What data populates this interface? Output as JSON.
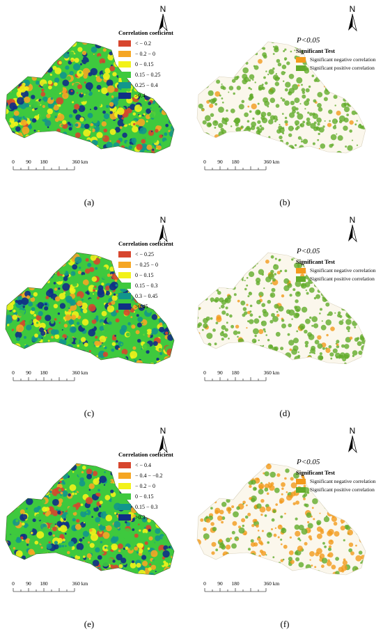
{
  "colors": {
    "corr_scale": [
      "#d7462e",
      "#f5a623",
      "#f2f21a",
      "#3ec93e",
      "#12968c",
      "#102f86"
    ],
    "sig_negative": "#f39a1c",
    "sig_positive": "#61ab2a"
  },
  "panels": [
    {
      "id": "a",
      "label": "(a)",
      "type": "correlation",
      "legend_title": "Correlation coeficient",
      "legend_items": [
        "< − 0.2",
        "− 0.2 − 0",
        "0 − 0.15",
        "0.15 − 0.25",
        "0.25 − 0.4",
        ">0.4"
      ],
      "north": "N",
      "scale_ticks": [
        "0",
        "90",
        "180",
        "360 km"
      ]
    },
    {
      "id": "b",
      "label": "(b)",
      "type": "significance",
      "p_text": "P<0.05",
      "legend_title": "Significant Test",
      "legend_items": [
        "Significant negative correlation",
        "Significant positive correlation"
      ],
      "north": "N",
      "scale_ticks": [
        "0",
        "90",
        "180",
        "360 km"
      ]
    },
    {
      "id": "c",
      "label": "(c)",
      "type": "correlation",
      "legend_title": "Correlation coeficient",
      "legend_items": [
        "< − 0.25",
        "− 0.25 − 0",
        "0 − 0.15",
        "0.15 − 0.3",
        "0.3 − 0.45",
        ">0.45"
      ],
      "north": "N",
      "scale_ticks": [
        "0",
        "90",
        "180",
        "360 km"
      ]
    },
    {
      "id": "d",
      "label": "(d)",
      "type": "significance",
      "p_text": "P<0.05",
      "legend_title": "Significant Test",
      "legend_items": [
        "Significant negative correlation",
        "Significant positive correlation"
      ],
      "north": "N",
      "scale_ticks": [
        "0",
        "90",
        "180",
        "360 km"
      ]
    },
    {
      "id": "e",
      "label": "(e)",
      "type": "correlation",
      "legend_title": "Correlation coeficient",
      "legend_items": [
        "< − 0.4",
        "− 0.4 − −0.2",
        "− 0.2 − 0",
        "0 − 0.15",
        "0.15 − 0.3",
        ">0.3"
      ],
      "north": "N",
      "scale_ticks": [
        "0",
        "90",
        "180",
        "360 km"
      ]
    },
    {
      "id": "f",
      "label": "(f)",
      "type": "significance",
      "p_text": "P<0.05",
      "legend_title": "Significant Test",
      "legend_items": [
        "Significant negative correlation",
        "Significant positive correlation"
      ],
      "north": "N",
      "scale_ticks": [
        "0",
        "90",
        "180",
        "360 km"
      ]
    }
  ]
}
